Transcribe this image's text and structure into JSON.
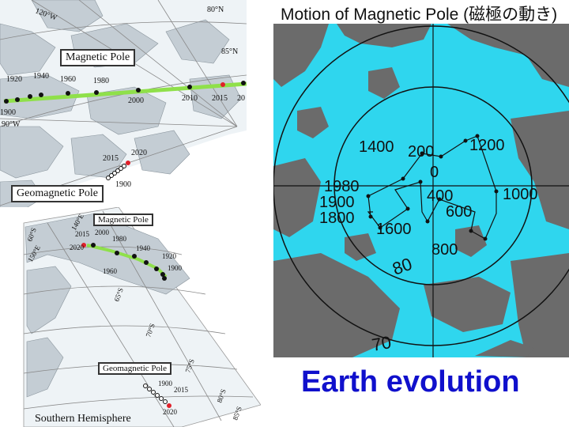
{
  "slide": {
    "title": "Motion of Magnetic Pole (磁極の動き)",
    "footer": "Earth evolution"
  },
  "north_map": {
    "magnetic_pole_label": "Magnetic Pole",
    "geomagnetic_pole_label": "Geomagnetic Pole",
    "lat_labels": [
      "80°N",
      "85°N"
    ],
    "lon_labels": [
      "120°W",
      "90°W"
    ],
    "years": [
      "1900",
      "1920",
      "1940",
      "1960",
      "1980",
      "2000",
      "2010",
      "2015",
      "20"
    ],
    "geo_years": [
      "2015",
      "2020",
      "1900"
    ],
    "track_color": "#8fe04a",
    "highlight_color": "#e0202a"
  },
  "south_map": {
    "caption": "Southern Hemisphere",
    "magnetic_pole_label": "Magnetic Pole",
    "geomagnetic_pole_label": "Geomagnetic Pole",
    "years": [
      "2015",
      "2000",
      "1980",
      "2020",
      "1960",
      "1940",
      "1920",
      "1900"
    ],
    "geo_years": [
      "1900",
      "2015",
      "2020"
    ],
    "lat_labels": [
      "60°S",
      "65°S",
      "70°S",
      "75°S",
      "80°S",
      "85°S"
    ],
    "lon_labels": [
      "140°E",
      "150°E"
    ]
  },
  "arctic_map": {
    "water_color": "#2fd6ee",
    "land_color": "#6b6b6b",
    "path_years": [
      "1400",
      "200",
      "1200",
      "0",
      "1000",
      "400",
      "600",
      "800",
      "1600",
      "1800",
      "1900",
      "1980"
    ],
    "circle_labels": [
      "80",
      "70"
    ]
  }
}
